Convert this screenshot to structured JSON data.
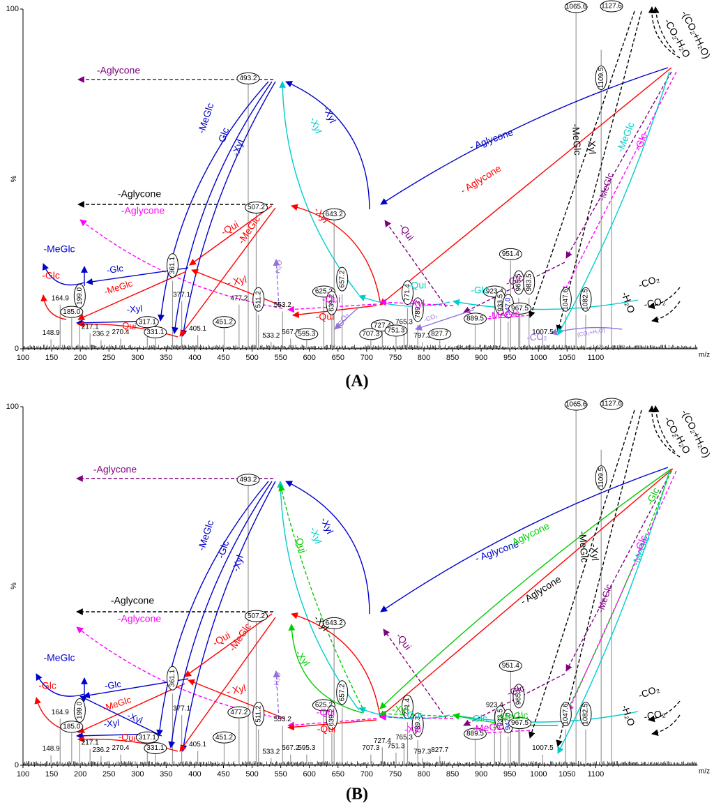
{
  "chart_data": [
    {
      "panel": "(A)",
      "type": "bar",
      "xlabel": "m/z",
      "ylabel": "%",
      "xlim": [
        100,
        1150
      ],
      "ylim": [
        0,
        100
      ],
      "xticks": [
        100,
        150,
        200,
        250,
        300,
        350,
        400,
        450,
        500,
        550,
        600,
        650,
        700,
        750,
        800,
        850,
        900,
        950,
        1000,
        1050,
        1100
      ],
      "yticks": [
        0,
        100
      ],
      "peaks": [
        {
          "mz": 148.9,
          "intensity": 2.8,
          "label": "148.9",
          "circled": false
        },
        {
          "mz": 164.9,
          "intensity": 13,
          "label": "164.9",
          "circled": false
        },
        {
          "mz": 185.0,
          "intensity": 9,
          "label": "185.0",
          "circled": true
        },
        {
          "mz": 199.0,
          "intensity": 11,
          "label": "199.0",
          "circled": true
        },
        {
          "mz": 217.1,
          "intensity": 4.5,
          "label": "217.1",
          "circled": false
        },
        {
          "mz": 236.2,
          "intensity": 2.5,
          "label": "236.2",
          "circled": false
        },
        {
          "mz": 270.4,
          "intensity": 3,
          "label": "270.4",
          "circled": false
        },
        {
          "mz": 317.1,
          "intensity": 6,
          "label": "317.1",
          "circled": true
        },
        {
          "mz": 331.1,
          "intensity": 3,
          "label": "331.1",
          "circled": true
        },
        {
          "mz": 361.1,
          "intensity": 20,
          "label": "361.1",
          "circled": true
        },
        {
          "mz": 377.1,
          "intensity": 14,
          "label": "377.1",
          "circled": false
        },
        {
          "mz": 405.1,
          "intensity": 4,
          "label": "405.1",
          "circled": false
        },
        {
          "mz": 451.2,
          "intensity": 6,
          "label": "451.2",
          "circled": true
        },
        {
          "mz": 477.2,
          "intensity": 13,
          "label": "477.2",
          "circled": false
        },
        {
          "mz": 493.2,
          "intensity": 80,
          "label": "493.2",
          "circled": true
        },
        {
          "mz": 507.2,
          "intensity": 42,
          "label": "507.2",
          "circled": true
        },
        {
          "mz": 511.2,
          "intensity": 10,
          "label": "511.2",
          "circled": true
        },
        {
          "mz": 533.2,
          "intensity": 2,
          "label": "533.2",
          "circled": false
        },
        {
          "mz": 553.2,
          "intensity": 11,
          "label": "553.2",
          "circled": false
        },
        {
          "mz": 567.2,
          "intensity": 3,
          "label": "567.2",
          "circled": false
        },
        {
          "mz": 595.3,
          "intensity": 2.5,
          "label": "595.3",
          "circled": true
        },
        {
          "mz": 625.2,
          "intensity": 15,
          "label": "625.2",
          "circled": true
        },
        {
          "mz": 639.2,
          "intensity": 9,
          "label": "639.2",
          "circled": true
        },
        {
          "mz": 643.2,
          "intensity": 40,
          "label": "643.2",
          "circled": true
        },
        {
          "mz": 657.2,
          "intensity": 16,
          "label": "657.2",
          "circled": true
        },
        {
          "mz": 707.3,
          "intensity": 2.5,
          "label": "707.3",
          "circled": true
        },
        {
          "mz": 727.4,
          "intensity": 5,
          "label": "727.4",
          "circled": true
        },
        {
          "mz": 751.3,
          "intensity": 3.5,
          "label": "751.3",
          "circled": true
        },
        {
          "mz": 765.3,
          "intensity": 6,
          "label": "765.3",
          "circled": false
        },
        {
          "mz": 771.4,
          "intensity": 12,
          "label": "771.4",
          "circled": true
        },
        {
          "mz": 789.3,
          "intensity": 7,
          "label": "789.3",
          "circled": true
        },
        {
          "mz": 797.3,
          "intensity": 2,
          "label": "797.3",
          "circled": false
        },
        {
          "mz": 827.7,
          "intensity": 2.5,
          "label": "827.7",
          "circled": true
        },
        {
          "mz": 889.5,
          "intensity": 7,
          "label": "889.5",
          "circled": true
        },
        {
          "mz": 923.4,
          "intensity": 15,
          "label": "923.4",
          "circled": true
        },
        {
          "mz": 933.5,
          "intensity": 9,
          "label": "933.5",
          "circled": true
        },
        {
          "mz": 947.0,
          "intensity": 8,
          "label": "947.0",
          "circled": true
        },
        {
          "mz": 951.4,
          "intensity": 26,
          "label": "951.4",
          "circled": true
        },
        {
          "mz": 965.5,
          "intensity": 15,
          "label": "965.5",
          "circled": true
        },
        {
          "mz": 967.5,
          "intensity": 10,
          "label": "967.5",
          "circled": true
        },
        {
          "mz": 983.5,
          "intensity": 15,
          "label": "983.5",
          "circled": true
        },
        {
          "mz": 1007.5,
          "intensity": 3,
          "label": "1007.5",
          "circled": false
        },
        {
          "mz": 1047.6,
          "intensity": 10,
          "label": "1047.6",
          "circled": true
        },
        {
          "mz": 1065.6,
          "intensity": 100,
          "label": "1065.6",
          "circled": true
        },
        {
          "mz": 1082.5,
          "intensity": 10,
          "label": "1082.5",
          "circled": true
        },
        {
          "mz": 1109.5,
          "intensity": 88,
          "label": "1109.5",
          "circled": true
        },
        {
          "mz": 1127.6,
          "intensity": 50,
          "label": "1127.6",
          "circled": true
        }
      ],
      "fragmentation_annotations": [
        {
          "text": "-Aglycone",
          "color": "#800080"
        },
        {
          "text": "-Aglycone",
          "color": "#000000"
        },
        {
          "text": "-Aglycone",
          "color": "#ff00ff"
        },
        {
          "text": "-MeGlc",
          "color": "#0000cc"
        },
        {
          "text": "-Glc",
          "color": "#ff0000"
        },
        {
          "text": "-Glc",
          "color": "#0000cc"
        },
        {
          "text": "-MeGlc",
          "color": "#ff0000"
        },
        {
          "text": "-Xyl",
          "color": "#0000cc"
        },
        {
          "text": "-Qui",
          "color": "#ff0000"
        },
        {
          "text": "-MeGlc",
          "color": "#0000cc"
        },
        {
          "text": "-Glc",
          "color": "#0000cc"
        },
        {
          "text": "-Xyl",
          "color": "#0000cc"
        },
        {
          "text": "-Xyl",
          "color": "#00cccc"
        },
        {
          "text": "-Xyl",
          "color": "#0000cc"
        },
        {
          "text": "-Qui",
          "color": "#ff0000"
        },
        {
          "text": "-MeGlc",
          "color": "#ff0000"
        },
        {
          "text": "- Xyl",
          "color": "#ff0000"
        },
        {
          "text": "-Xyl",
          "color": "#ff0000"
        },
        {
          "text": "-H₂O",
          "color": "#9370db"
        },
        {
          "text": "-Qui",
          "color": "#ff00ff"
        },
        {
          "text": "-Qui",
          "color": "#ff0000"
        },
        {
          "text": "-CO₂",
          "color": "#9370db"
        },
        {
          "text": "-Qui",
          "color": "#800080"
        },
        {
          "text": "- Aglycone",
          "color": "#0000cc"
        },
        {
          "text": "- Aglycone",
          "color": "#ff0000"
        },
        {
          "text": "-Qui",
          "color": "#00cccc"
        },
        {
          "text": "-Xyl",
          "color": "#ff00ff"
        },
        {
          "text": "-Glc",
          "color": "#00cccc"
        },
        {
          "text": "-Glc",
          "color": "#800080"
        },
        {
          "text": "-MeGlc",
          "color": "#ff00ff"
        },
        {
          "text": "-CO₂",
          "color": "#9370db"
        },
        {
          "text": "(CO₂+H₂O)",
          "color": "#9370db"
        },
        {
          "text": "-CO₂",
          "color": "#9370db"
        },
        {
          "text": "-MeGlc",
          "color": "#000000"
        },
        {
          "text": "-Xyl",
          "color": "#000000"
        },
        {
          "text": "-MeGlc",
          "color": "#800080"
        },
        {
          "text": "-MeGlc",
          "color": "#00cccc"
        },
        {
          "text": "-Glc",
          "color": "#ff00ff"
        },
        {
          "text": "-(CO₂+H₂O)",
          "color": "#000000"
        },
        {
          "text": "-CO₂",
          "color": "#000000"
        },
        {
          "text": "-H₂O",
          "color": "#000000"
        },
        {
          "text": "-H₂O",
          "color": "#000000"
        },
        {
          "text": "-CO₂",
          "color": "#000000"
        },
        {
          "text": "-CO₂",
          "color": "#000000"
        }
      ]
    },
    {
      "panel": "(B)",
      "type": "bar",
      "xlabel": "m/z",
      "ylabel": "%",
      "xlim": [
        100,
        1150
      ],
      "ylim": [
        0,
        100
      ],
      "xticks": [
        100,
        150,
        200,
        250,
        300,
        350,
        400,
        450,
        500,
        550,
        600,
        650,
        700,
        750,
        800,
        850,
        900,
        950,
        1000,
        1050,
        1100
      ],
      "yticks": [
        0,
        100
      ],
      "peaks": [
        {
          "mz": 148.9,
          "intensity": 2.8,
          "label": "148.9",
          "circled": false
        },
        {
          "mz": 164.9,
          "intensity": 13,
          "label": "164.9",
          "circled": false
        },
        {
          "mz": 185.0,
          "intensity": 9,
          "label": "185.0",
          "circled": true
        },
        {
          "mz": 199.0,
          "intensity": 11,
          "label": "199.0",
          "circled": true
        },
        {
          "mz": 217.1,
          "intensity": 4.5,
          "label": "217.1",
          "circled": false
        },
        {
          "mz": 236.2,
          "intensity": 2.5,
          "label": "236.2",
          "circled": false
        },
        {
          "mz": 270.4,
          "intensity": 3,
          "label": "270.4",
          "circled": false
        },
        {
          "mz": 317.1,
          "intensity": 6,
          "label": "317.1",
          "circled": true
        },
        {
          "mz": 331.1,
          "intensity": 3,
          "label": "331.1",
          "circled": true
        },
        {
          "mz": 361.1,
          "intensity": 20,
          "label": "361.1",
          "circled": true
        },
        {
          "mz": 377.1,
          "intensity": 14,
          "label": "377.1",
          "circled": false
        },
        {
          "mz": 405.1,
          "intensity": 4,
          "label": "405.1",
          "circled": false
        },
        {
          "mz": 451.2,
          "intensity": 6,
          "label": "451.2",
          "circled": true
        },
        {
          "mz": 477.2,
          "intensity": 13,
          "label": "477.2",
          "circled": true
        },
        {
          "mz": 493.2,
          "intensity": 80,
          "label": "493.2",
          "circled": true
        },
        {
          "mz": 507.2,
          "intensity": 42,
          "label": "507.2",
          "circled": true
        },
        {
          "mz": 511.2,
          "intensity": 10,
          "label": "511.2",
          "circled": true
        },
        {
          "mz": 533.2,
          "intensity": 2,
          "label": "533.2",
          "circled": false
        },
        {
          "mz": 553.2,
          "intensity": 11,
          "label": "553.2",
          "circled": false
        },
        {
          "mz": 567.2,
          "intensity": 3,
          "label": "567.2",
          "circled": false
        },
        {
          "mz": 595.3,
          "intensity": 3,
          "label": "595.3",
          "circled": false
        },
        {
          "mz": 625.2,
          "intensity": 15,
          "label": "625.2",
          "circled": true
        },
        {
          "mz": 639.2,
          "intensity": 9,
          "label": "639.2",
          "circled": true
        },
        {
          "mz": 643.2,
          "intensity": 40,
          "label": "643.2",
          "circled": true
        },
        {
          "mz": 657.2,
          "intensity": 16,
          "label": "657.2",
          "circled": true
        },
        {
          "mz": 707.3,
          "intensity": 3,
          "label": "707.3",
          "circled": false
        },
        {
          "mz": 727.4,
          "intensity": 5,
          "label": "727.4",
          "circled": false
        },
        {
          "mz": 751.3,
          "intensity": 3.5,
          "label": "751.3",
          "circled": false
        },
        {
          "mz": 765.3,
          "intensity": 6,
          "label": "765.3",
          "circled": false
        },
        {
          "mz": 771.4,
          "intensity": 12,
          "label": "771.4",
          "circled": true
        },
        {
          "mz": 789.3,
          "intensity": 7,
          "label": "789.3",
          "circled": true
        },
        {
          "mz": 797.3,
          "intensity": 2,
          "label": "797.3",
          "circled": false
        },
        {
          "mz": 827.7,
          "intensity": 2.5,
          "label": "827.7",
          "circled": false
        },
        {
          "mz": 889.5,
          "intensity": 7,
          "label": "889.5",
          "circled": true
        },
        {
          "mz": 923.4,
          "intensity": 15,
          "label": "923.4",
          "circled": false
        },
        {
          "mz": 933.5,
          "intensity": 9,
          "label": "933.5",
          "circled": true
        },
        {
          "mz": 947.0,
          "intensity": 8,
          "label": "947.0",
          "circled": true
        },
        {
          "mz": 951.4,
          "intensity": 26,
          "label": "951.4",
          "circled": true
        },
        {
          "mz": 965.5,
          "intensity": 15,
          "label": "965.5",
          "circled": true
        },
        {
          "mz": 967.5,
          "intensity": 10,
          "label": "967.5",
          "circled": true
        },
        {
          "mz": 1007.5,
          "intensity": 3,
          "label": "1007.5",
          "circled": false
        },
        {
          "mz": 1047.6,
          "intensity": 10,
          "label": "1047.6",
          "circled": true
        },
        {
          "mz": 1065.6,
          "intensity": 100,
          "label": "1065.6",
          "circled": true
        },
        {
          "mz": 1082.5,
          "intensity": 10,
          "label": "1082.5",
          "circled": true
        },
        {
          "mz": 1109.5,
          "intensity": 88,
          "label": "1109.5",
          "circled": true
        },
        {
          "mz": 1127.6,
          "intensity": 50,
          "label": "1127.6",
          "circled": true
        }
      ],
      "fragmentation_annotations": [
        {
          "text": "-Aglycone",
          "color": "#800080"
        },
        {
          "text": "-Aglycone",
          "color": "#000000"
        },
        {
          "text": "-Aglycone",
          "color": "#ff00ff"
        },
        {
          "text": "-MeGlc",
          "color": "#0000cc"
        },
        {
          "text": "-Glc",
          "color": "#ff0000"
        },
        {
          "text": "-Glc",
          "color": "#0000cc"
        },
        {
          "text": "-MeGlc",
          "color": "#ff0000"
        },
        {
          "text": "-Xyl",
          "color": "#0000cc"
        },
        {
          "text": "-Xyl",
          "color": "#0000cc"
        },
        {
          "text": "-Qui",
          "color": "#ff0000"
        },
        {
          "text": "-MeGlc",
          "color": "#0000cc"
        },
        {
          "text": "-Glc",
          "color": "#0000cc"
        },
        {
          "text": "-Xyl",
          "color": "#0000cc"
        },
        {
          "text": "-Qui",
          "color": "#00cc00"
        },
        {
          "text": "-Xyl",
          "color": "#00cccc"
        },
        {
          "text": "-Xyl",
          "color": "#0000cc"
        },
        {
          "text": "-Qui",
          "color": "#ff0000"
        },
        {
          "text": "-MeGlc",
          "color": "#ff0000"
        },
        {
          "text": "- Xyl",
          "color": "#ff0000"
        },
        {
          "text": "-Xyl",
          "color": "#000000"
        },
        {
          "text": "-Xyl",
          "color": "#00cc00"
        },
        {
          "text": "-H₂O",
          "color": "#9370db"
        },
        {
          "text": "-Qui",
          "color": "#ff00ff"
        },
        {
          "text": "-Qui",
          "color": "#ff0000"
        },
        {
          "text": "-Qui",
          "color": "#800080"
        },
        {
          "text": "- Aglycone",
          "color": "#0000cc"
        },
        {
          "text": "- Aglycone",
          "color": "#00cc00"
        },
        {
          "text": "- Aglycone",
          "color": "#000000"
        },
        {
          "text": "-Qui",
          "color": "#00cccc"
        },
        {
          "text": "-Xyl",
          "color": "#00cc00"
        },
        {
          "text": "-Xyl",
          "color": "#ff00ff"
        },
        {
          "text": "-Glc",
          "color": "#00cccc"
        },
        {
          "text": "-Glc",
          "color": "#800080"
        },
        {
          "text": "-MeGlc",
          "color": "#00cc00"
        },
        {
          "text": "-MeGlc",
          "color": "#ff00ff"
        },
        {
          "text": "-MeGlc",
          "color": "#000000"
        },
        {
          "text": "-Xyl",
          "color": "#000000"
        },
        {
          "text": "-MeGlc",
          "color": "#800080"
        },
        {
          "text": "-MeGlc",
          "color": "#00cccc"
        },
        {
          "text": "-Glc",
          "color": "#00cc00"
        },
        {
          "text": "-Glc",
          "color": "#ff00ff"
        },
        {
          "text": "-(CO₂+H₂O)",
          "color": "#000000"
        },
        {
          "text": "-CO₂",
          "color": "#000000"
        },
        {
          "text": "-H₂O",
          "color": "#000000"
        },
        {
          "text": "-H₂O",
          "color": "#000000"
        },
        {
          "text": "-CO₂",
          "color": "#000000"
        },
        {
          "text": "-CO₂",
          "color": "#000000"
        }
      ]
    }
  ]
}
